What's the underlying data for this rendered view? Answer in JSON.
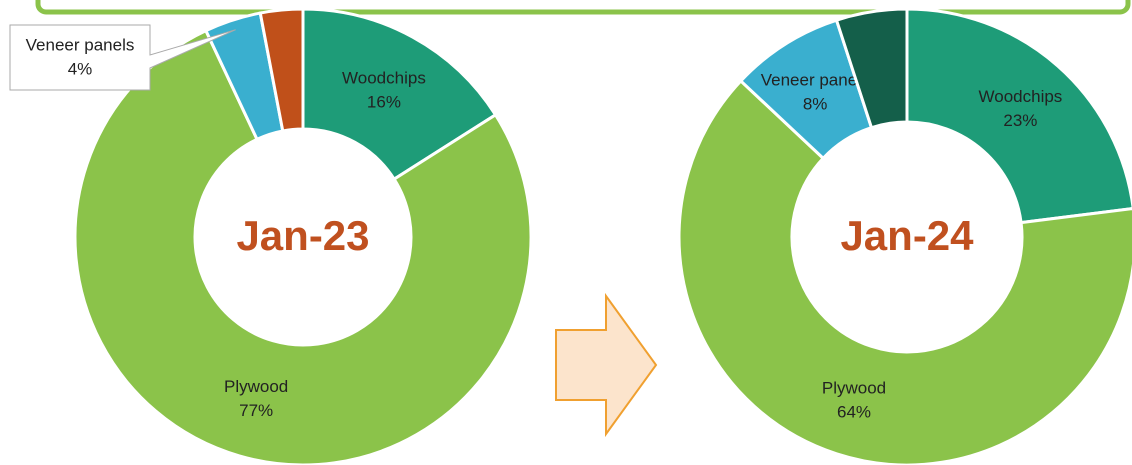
{
  "chart_data": [
    {
      "type": "donut",
      "title": "Jan-23",
      "categories": [
        "Woodchips",
        "Plywood",
        "Veneer panels",
        null
      ],
      "values": [
        16,
        77,
        4,
        3
      ],
      "value_labels": [
        "16%",
        "77%",
        "4%",
        null
      ],
      "colors": [
        "#1e9c78",
        "#8bc34a",
        "#3aafcf",
        "#c0501a"
      ]
    },
    {
      "type": "donut",
      "title": "Jan-24",
      "categories": [
        "Woodchips",
        "Plywood",
        "Veneer panels",
        null
      ],
      "values": [
        23,
        64,
        8,
        5
      ],
      "value_labels": [
        "23%",
        "64%",
        "8%",
        null
      ],
      "colors": [
        "#1e9c78",
        "#8bc34a",
        "#3aafcf",
        "#145f4a"
      ]
    }
  ]
}
